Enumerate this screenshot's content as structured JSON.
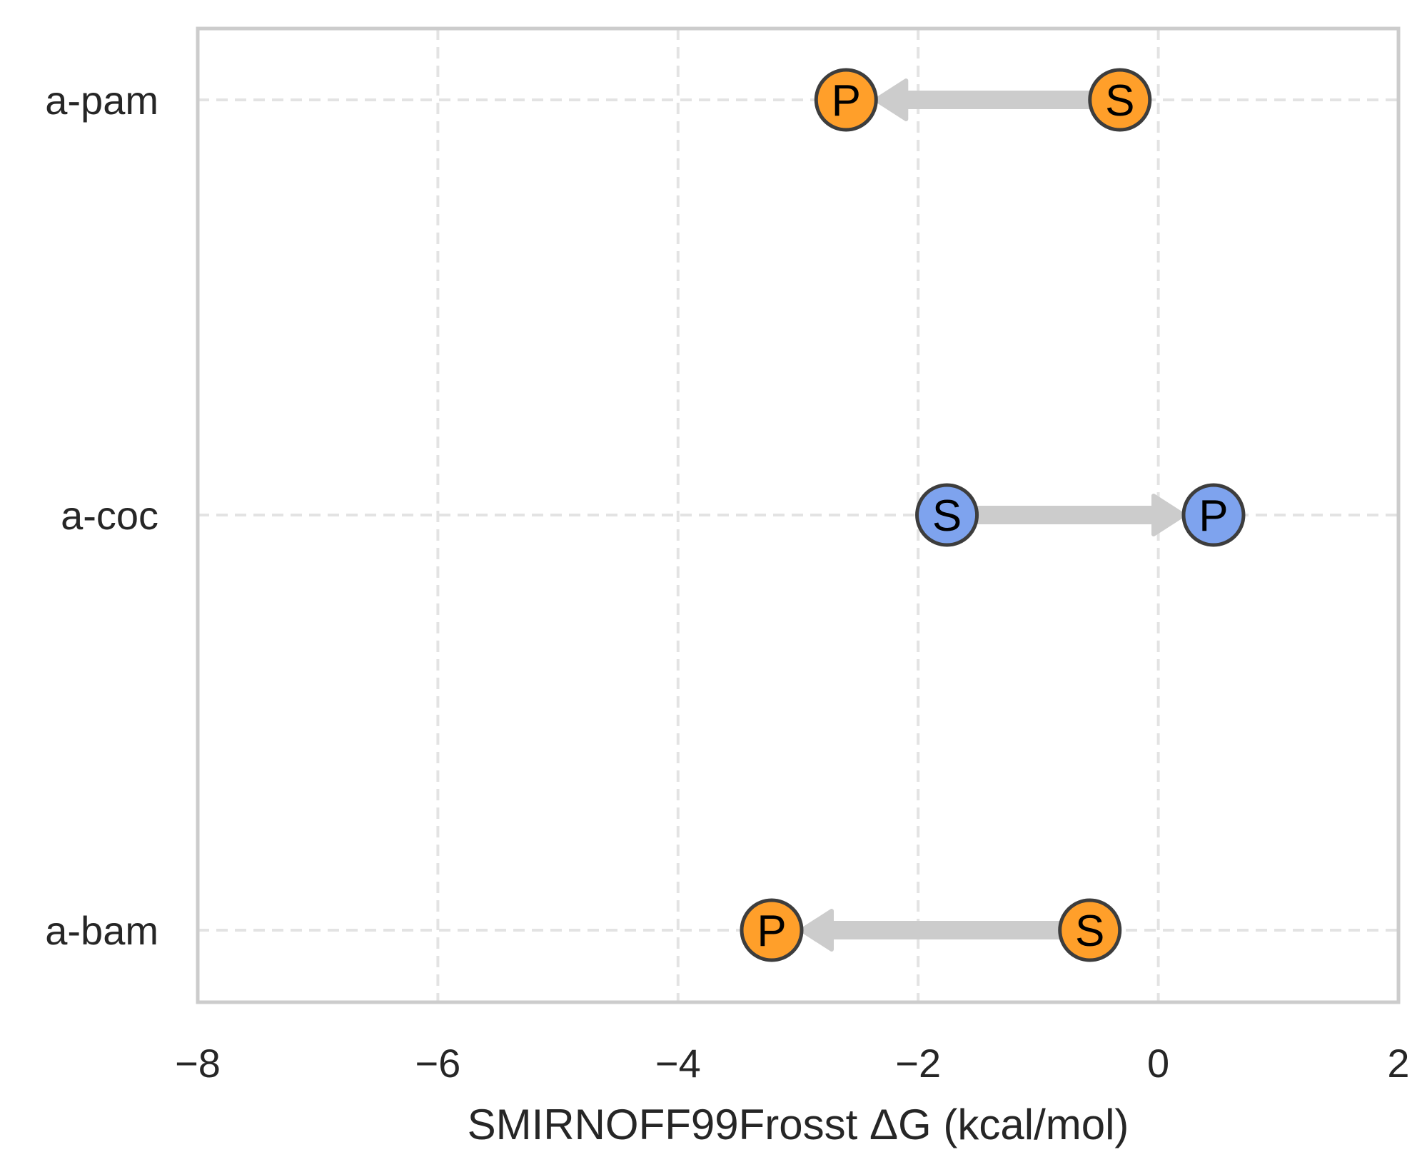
{
  "chart_data": {
    "type": "scatter",
    "xlabel": "SMIRNOFF99Frosst ΔG (kcal/mol)",
    "ylabel": "",
    "xlim": [
      -8,
      2
    ],
    "xticks": [
      {
        "value": -8,
        "label": "−8"
      },
      {
        "value": -6,
        "label": "−6"
      },
      {
        "value": -4,
        "label": "−4"
      },
      {
        "value": -2,
        "label": "−2"
      },
      {
        "value": 0,
        "label": "0"
      },
      {
        "value": 2,
        "label": "2"
      }
    ],
    "categories": [
      "a-bam",
      "a-coc",
      "a-pam"
    ],
    "grid": true,
    "grid_style": "dashed",
    "series": [
      {
        "category": "a-pam",
        "start_label": "S",
        "start": -0.32,
        "end_label": "P",
        "end": -2.6,
        "color": "#ff9f2a"
      },
      {
        "category": "a-coc",
        "start_label": "S",
        "start": -1.76,
        "end_label": "P",
        "end": 0.46,
        "color": "#7ea3ee"
      },
      {
        "category": "a-bam",
        "start_label": "S",
        "start": -0.57,
        "end_label": "P",
        "end": -3.22,
        "color": "#ff9f2a"
      }
    ],
    "arrow_color": "#cccccc",
    "frame_color": "#cccccc",
    "grid_color": "#e3e3e3"
  }
}
